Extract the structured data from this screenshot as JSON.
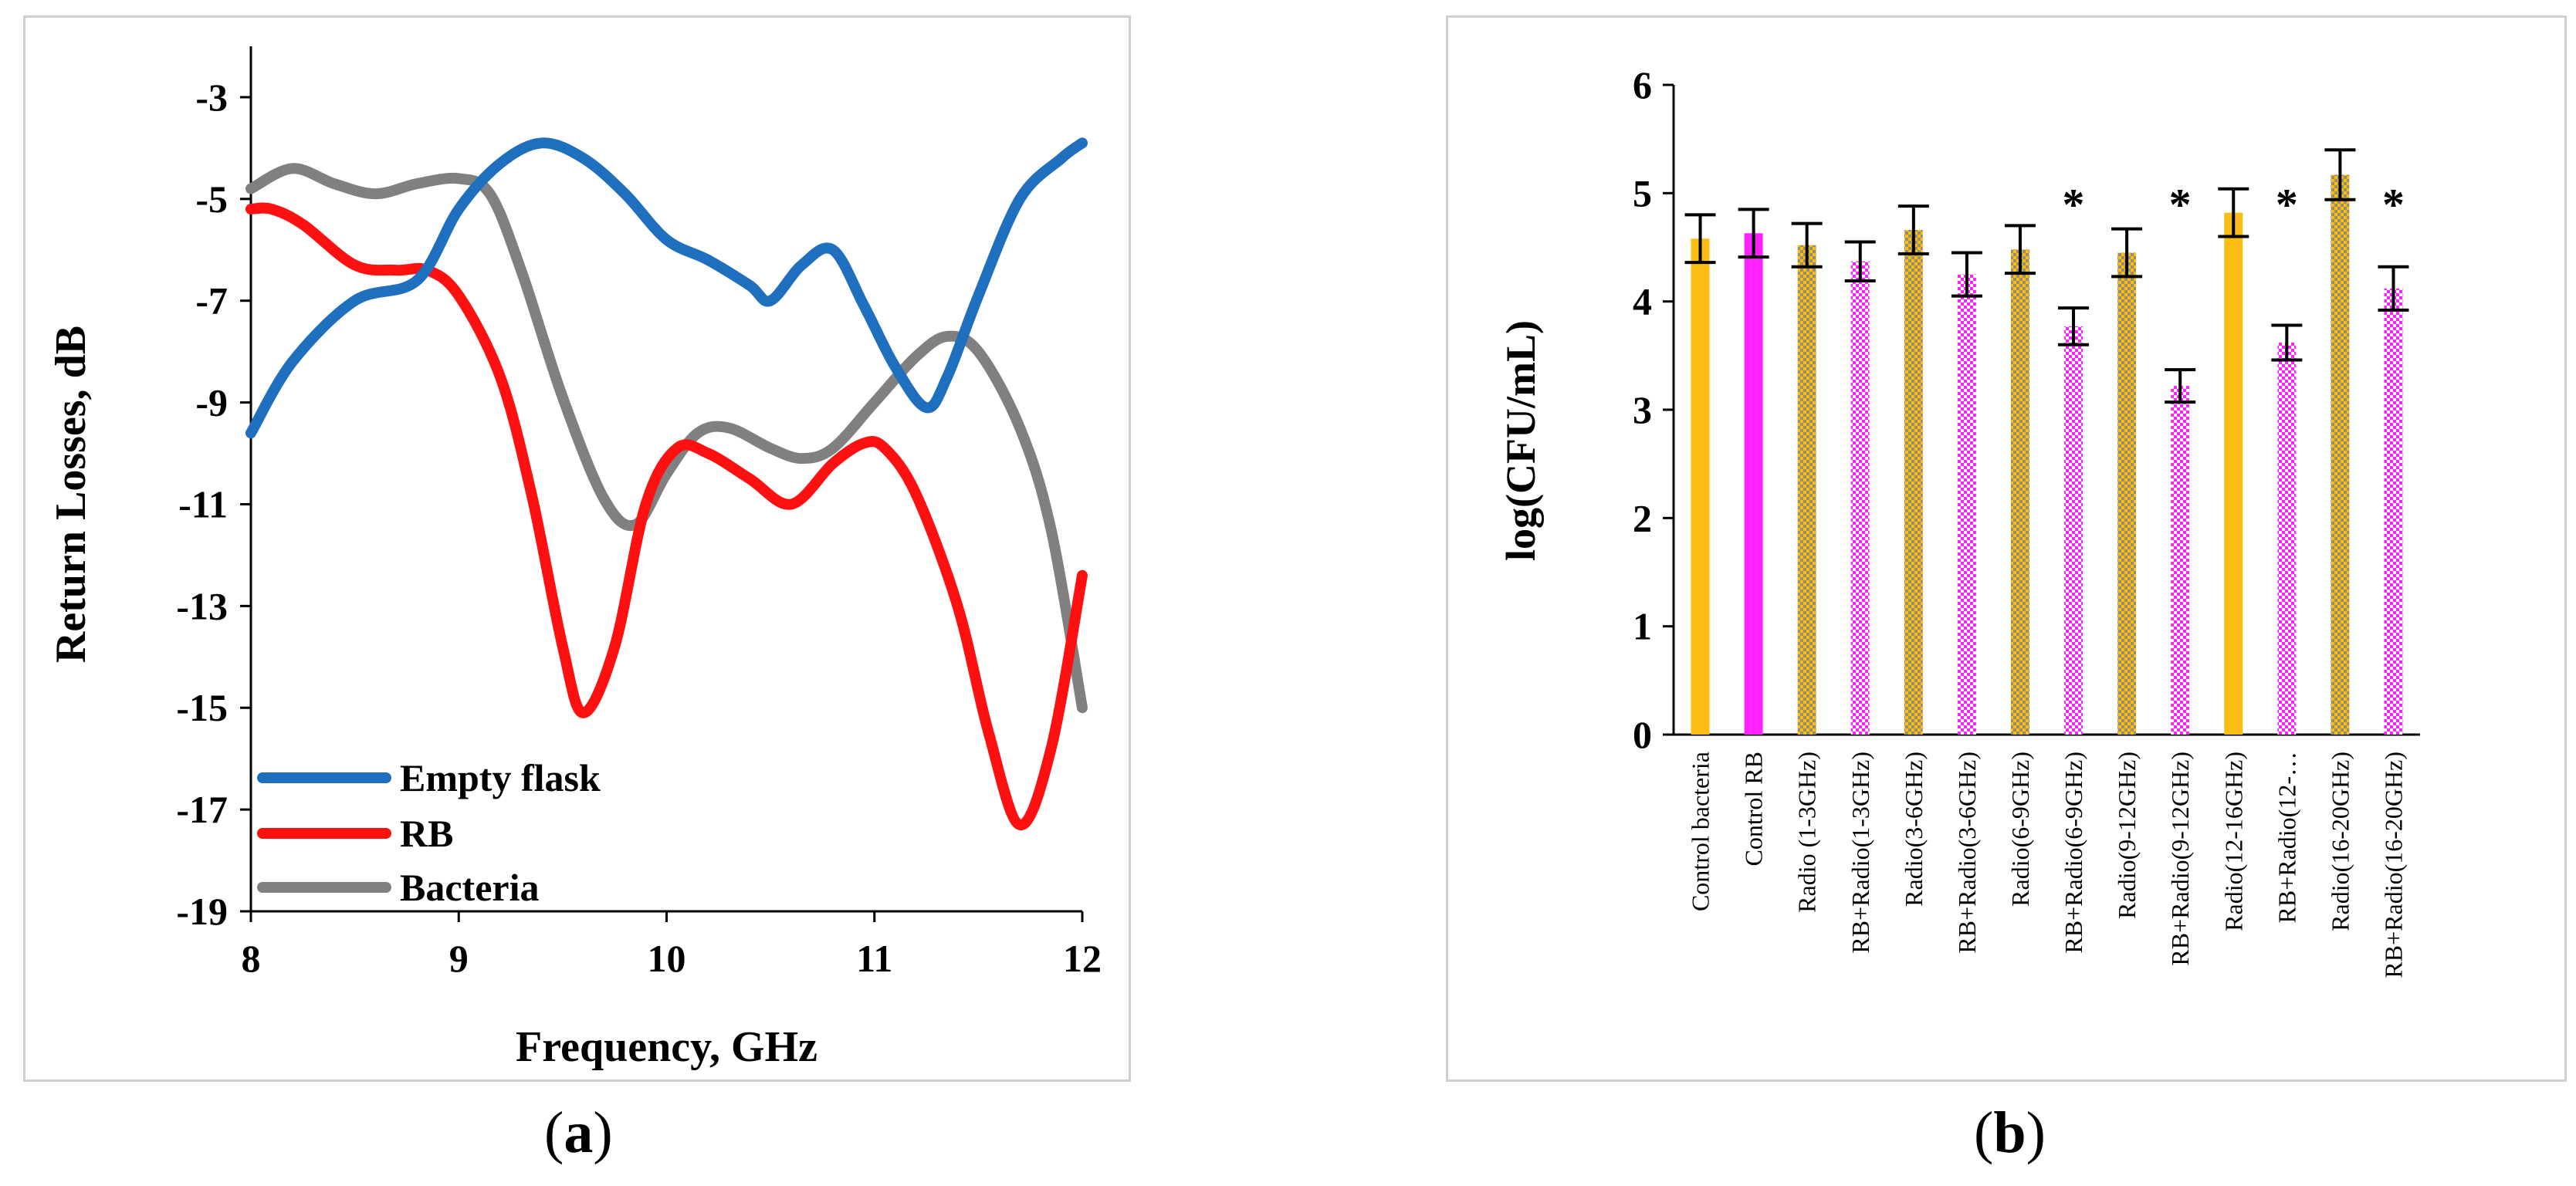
{
  "chart_data": [
    {
      "panel": "a",
      "type": "line",
      "xlabel": "Frequency, GHz",
      "ylabel": "Return Losses, dB",
      "xlim": [
        8,
        12
      ],
      "ylim": [
        -19,
        -2
      ],
      "x_ticks": [
        8,
        9,
        10,
        11,
        12
      ],
      "y_ticks": [
        -3,
        -5,
        -7,
        -9,
        -11,
        -13,
        -15,
        -17,
        -19
      ],
      "legend_position": "bottom-left",
      "series": [
        {
          "name": "Empty flask",
          "color": "#1f6fbf",
          "x": [
            8.0,
            8.2,
            8.5,
            8.8,
            9.0,
            9.2,
            9.4,
            9.6,
            9.8,
            10.0,
            10.2,
            10.4,
            10.5,
            10.65,
            10.8,
            10.95,
            11.1,
            11.25,
            11.35,
            11.5,
            11.7,
            11.9,
            12.0
          ],
          "y": [
            -9.6,
            -8.2,
            -7.0,
            -6.6,
            -5.2,
            -4.3,
            -3.9,
            -4.2,
            -4.9,
            -5.8,
            -6.2,
            -6.7,
            -7.0,
            -6.3,
            -6.0,
            -7.1,
            -8.3,
            -9.1,
            -8.5,
            -6.9,
            -5.0,
            -4.2,
            -3.9
          ]
        },
        {
          "name": "RB",
          "color": "#ff1010",
          "x": [
            8.0,
            8.1,
            8.25,
            8.5,
            8.7,
            8.85,
            9.0,
            9.2,
            9.35,
            9.5,
            9.6,
            9.75,
            9.9,
            10.05,
            10.2,
            10.4,
            10.6,
            10.8,
            10.95,
            11.05,
            11.2,
            11.4,
            11.55,
            11.7,
            11.85,
            12.0
          ],
          "y": [
            -5.2,
            -5.2,
            -5.5,
            -6.3,
            -6.4,
            -6.4,
            -6.9,
            -8.5,
            -10.8,
            -13.8,
            -15.1,
            -13.8,
            -11.0,
            -9.9,
            -10.0,
            -10.5,
            -11.0,
            -10.2,
            -9.8,
            -9.9,
            -10.8,
            -13.0,
            -15.5,
            -17.3,
            -15.8,
            -12.4
          ]
        },
        {
          "name": "Bacteria",
          "color": "#808080",
          "x": [
            8.0,
            8.2,
            8.4,
            8.6,
            8.8,
            9.0,
            9.15,
            9.3,
            9.5,
            9.7,
            9.85,
            10.0,
            10.15,
            10.3,
            10.5,
            10.65,
            10.8,
            11.0,
            11.2,
            11.35,
            11.5,
            11.7,
            11.85,
            12.0
          ],
          "y": [
            -4.8,
            -4.4,
            -4.7,
            -4.9,
            -4.7,
            -4.6,
            -4.9,
            -6.4,
            -8.9,
            -10.9,
            -11.4,
            -10.4,
            -9.6,
            -9.5,
            -9.9,
            -10.1,
            -9.9,
            -9.0,
            -8.1,
            -7.7,
            -8.0,
            -9.5,
            -11.5,
            -15.0
          ]
        }
      ]
    },
    {
      "panel": "b",
      "type": "bar",
      "ylabel": "log(CFU/mL)",
      "ylim": [
        0,
        6
      ],
      "y_ticks": [
        0,
        1,
        2,
        3,
        4,
        5,
        6
      ],
      "categories": [
        "Control bacteria",
        "Control RB",
        "Radio (1-3GHz)",
        "RB+Radio(1-3GHz)",
        "Radio(3-6GHz)",
        "RB+Radio(3-6GHz)",
        "Radio(6-9GHz)",
        "RB+Radio(6-9GHz)",
        "Radio(9-12GHz)",
        "RB+Radio(9-12GHz)",
        "Radio(12-16GHz)",
        "RB+Radio(12-…",
        "Radio(16-20GHz)",
        "RB+Radio(16-20GHz)"
      ],
      "values": [
        4.58,
        4.63,
        4.52,
        4.37,
        4.66,
        4.25,
        4.48,
        3.77,
        4.45,
        3.22,
        4.82,
        3.62,
        5.17,
        4.12
      ],
      "errors": [
        0.22,
        0.22,
        0.2,
        0.18,
        0.22,
        0.2,
        0.22,
        0.17,
        0.22,
        0.15,
        0.22,
        0.16,
        0.23,
        0.2
      ],
      "significant": [
        false,
        false,
        false,
        false,
        false,
        false,
        false,
        true,
        false,
        true,
        false,
        true,
        false,
        true
      ],
      "significance_marker": "*",
      "colors": [
        "#f9bd16",
        "#ff22ff",
        "#f9bd16",
        "#ff22ff",
        "#f9bd16",
        "#ff22ff",
        "#f9bd16",
        "#ff22ff",
        "#f9bd16",
        "#ff22ff",
        "#f9bd16",
        "#ff22ff",
        "#f9bd16",
        "#ff22ff"
      ],
      "patterned": [
        false,
        false,
        true,
        true,
        true,
        true,
        true,
        true,
        true,
        true,
        false,
        true,
        true,
        true
      ]
    }
  ],
  "captions": {
    "a_open": "(",
    "a_letter": "a",
    "a_close": ")",
    "b_open": "(",
    "b_letter": "b",
    "b_close": ")"
  }
}
